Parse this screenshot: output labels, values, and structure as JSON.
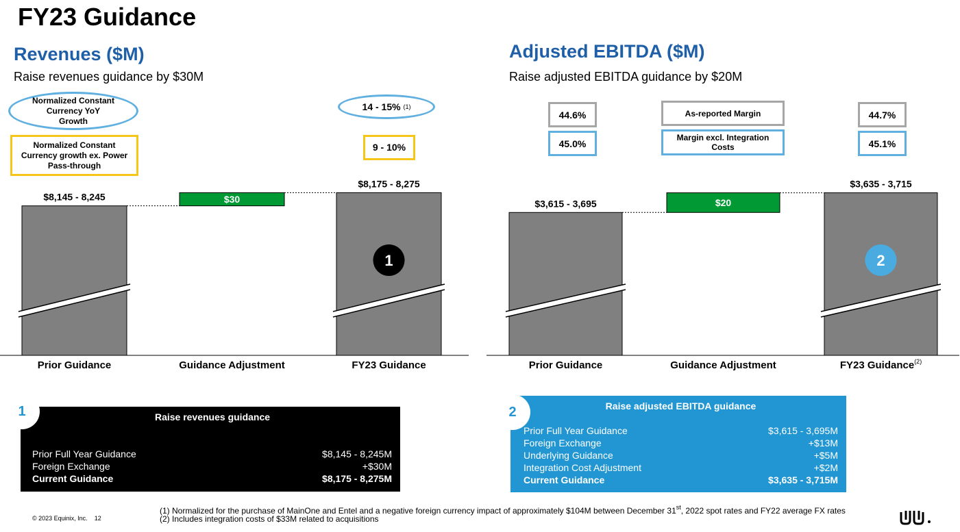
{
  "page_title": "FY23 Guidance",
  "colors": {
    "title_blue": "#1f5fa8",
    "bar_gray": "#808080",
    "bar_green": "#009933",
    "accent_blue": "#2196d3",
    "oval_blue": "#5fb0e0",
    "yellow": "#f5c518",
    "badge_blue": "#4aabe0"
  },
  "revenue": {
    "title": "Revenues ($M)",
    "subtitle": "Raise revenues guidance by $30M",
    "oval_label": "Normalized Constant Currency YoY Growth",
    "oval_value": "14 - 15%",
    "oval_value_note": "(1)",
    "yellow_label": "Normalized Constant Currency growth ex. Power Pass-through",
    "yellow_value": "9 - 10%"
  },
  "ebitda": {
    "title": "Adjusted EBITDA ($M)",
    "subtitle": "Raise adjusted EBITDA guidance by $20M",
    "reported_label": "As-reported Margin",
    "excl_label": "Margin excl. Integration Costs",
    "prior_reported": "44.6%",
    "prior_excl": "45.0%",
    "fy23_reported": "44.7%",
    "fy23_excl": "45.1%"
  },
  "chart_data": [
    {
      "type": "bar",
      "subtype": "waterfall",
      "title": "Revenues ($M)",
      "categories": [
        "Prior Guidance",
        "Guidance Adjustment",
        "FY23 Guidance"
      ],
      "category_notes": [
        "",
        "",
        ""
      ],
      "values": [
        8195,
        30,
        8225
      ],
      "data_labels": [
        "$8,145 - 8,245",
        "$30",
        "$8,175 - 8,275"
      ],
      "badge": "1",
      "axis_break": true
    },
    {
      "type": "bar",
      "subtype": "waterfall",
      "title": "Adjusted EBITDA ($M)",
      "categories": [
        "Prior Guidance",
        "Guidance Adjustment",
        "FY23 Guidance"
      ],
      "category_notes": [
        "",
        "",
        "(2)"
      ],
      "values": [
        3655,
        20,
        3675
      ],
      "data_labels": [
        "$3,615 - 3,695",
        "$20",
        "$3,635 - 3,715"
      ],
      "badge": "2",
      "axis_break": true
    }
  ],
  "summary_revenue": {
    "badge": "1",
    "title": "Raise revenues guidance",
    "rows": [
      {
        "label": "Prior Full Year Guidance",
        "value": "$8,145 - 8,245M"
      },
      {
        "label": "Foreign Exchange",
        "value": "+$30M"
      },
      {
        "label": "Current Guidance",
        "value": "$8,175 - 8,275M"
      }
    ]
  },
  "summary_ebitda": {
    "badge": "2",
    "title": "Raise adjusted EBITDA guidance",
    "rows": [
      {
        "label": "Prior Full Year Guidance",
        "value": "$3,615 - 3,695M"
      },
      {
        "label": "Foreign Exchange",
        "value": "+$13M"
      },
      {
        "label": "Underlying Guidance",
        "value": "+$5M"
      },
      {
        "label": "Integration Cost Adjustment",
        "value": "+$2M"
      },
      {
        "label": "Current Guidance",
        "value": "$3,635 - 3,715M"
      }
    ]
  },
  "footnotes": {
    "f1_pre": "(1) Normalized for the purchase of MainOne and Entel and a negative foreign currency impact of approximately $104M between December 31",
    "f1_sup": "st",
    "f1_post": ", 2022 spot rates and FY22 average FX rates",
    "f2": "(2) Includes integration costs of $33M related to acquisitions"
  },
  "copyright": "© 2023 Equinix, Inc.",
  "page_number": "12",
  "logo_icon": "equinix-logo-icon"
}
